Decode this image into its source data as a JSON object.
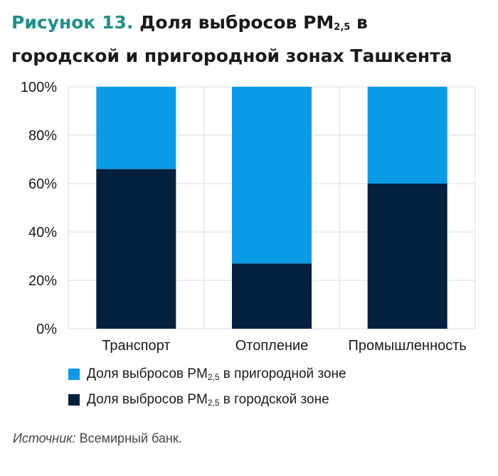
{
  "title": {
    "prefix": "Рисунок 13.",
    "main_1": "Доля выбросов PM",
    "sub": "2,5",
    "main_2": " в",
    "line2": "городской и пригородной зонах Ташкента"
  },
  "legend": {
    "suburban": {
      "pre": "Доля выбросов PM",
      "sub": "2,5",
      "post": " в пригородной зоне"
    },
    "urban": {
      "pre": "Доля выбросов PM",
      "sub": "2,5",
      "post": " в городской зоне"
    }
  },
  "source": {
    "label": "Источник:",
    "text": " Всемирный банк."
  },
  "chart_data": {
    "type": "bar",
    "stacked": true,
    "categories": [
      "Транспорт",
      "Отопление",
      "Промышленность"
    ],
    "series": [
      {
        "name": "Доля выбросов PM2,5 в городской зоне",
        "values": [
          66,
          27,
          60
        ],
        "color": "#03203f"
      },
      {
        "name": "Доля выбросов PM2,5 в пригородной зоне",
        "values": [
          34,
          73,
          40
        ],
        "color": "#0b9be6"
      }
    ],
    "y_ticks": [
      "0%",
      "20%",
      "40%",
      "60%",
      "80%",
      "100%"
    ],
    "ylim": [
      0,
      100
    ],
    "grid": true,
    "legend_position": "bottom"
  }
}
